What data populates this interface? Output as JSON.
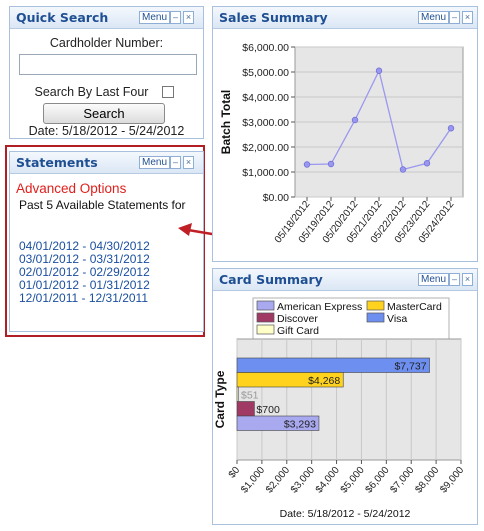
{
  "common": {
    "menu_label": "Menu",
    "minimize_glyph": "–",
    "close_glyph": "×"
  },
  "quick_search": {
    "title": "Quick Search",
    "cardholder_label": "Cardholder Number:",
    "cardholder_value": "",
    "last_four_label": "Search By Last Four",
    "last_four_checked": false,
    "search_button": "Search",
    "date_range": "Date: 5/18/2012 - 5/24/2012"
  },
  "statements": {
    "title": "Statements",
    "advanced_options": "Advanced Options",
    "subtitle": "Past 5 Available Statements for",
    "links": [
      "04/01/2012 - 04/30/2012",
      "03/01/2012 - 03/31/2012",
      "02/01/2012 - 02/29/2012",
      "01/01/2012 - 01/31/2012",
      "12/01/2011 - 12/31/2011"
    ],
    "highlight_color": "#b11f24"
  },
  "sales_summary": {
    "title": "Sales Summary"
  },
  "card_summary": {
    "title": "Card Summary",
    "footer": "Date: 5/18/2012 - 5/24/2012"
  },
  "chart_data": [
    {
      "type": "line",
      "ylabel": "Batch Total",
      "x": [
        "05/18/2012",
        "05/19/2012",
        "05/20/2012",
        "05/21/2012",
        "05/22/2012",
        "05/23/2012",
        "05/24/2012"
      ],
      "series": [
        {
          "values": [
            1300,
            1320,
            3080,
            5050,
            1100,
            1350,
            2750
          ],
          "color": "#9a98ee"
        }
      ],
      "ylim": [
        0,
        6000
      ],
      "yticks": [
        0,
        1000,
        2000,
        3000,
        4000,
        5000,
        6000
      ],
      "ytick_labels": [
        "$0.00",
        "$1,000.00",
        "$2,000.00",
        "$3,000.00",
        "$4,000.00",
        "$5,000.00",
        "$6,000.00"
      ],
      "grid": true
    },
    {
      "type": "bar",
      "orientation": "horizontal",
      "ylabel": "Card Type",
      "legend_position": "top",
      "categories": [
        "American Express",
        "MasterCard",
        "Discover",
        "Visa",
        "Gift Card"
      ],
      "colors": [
        "#a9a9f0",
        "#ffd21e",
        "#a03a65",
        "#6c8ff0",
        "#ffffc8"
      ],
      "values": [
        3293,
        4268,
        700,
        7737,
        51
      ],
      "data_labels": [
        "$3,293",
        "$4,268",
        "$700",
        "$7,737",
        "$51"
      ],
      "draw_order": [
        "Visa",
        "MasterCard",
        "Gift Card",
        "Discover",
        "American Express"
      ],
      "xlim": [
        0,
        9000
      ],
      "xticks": [
        0,
        1000,
        2000,
        3000,
        4000,
        5000,
        6000,
        7000,
        8000,
        9000
      ],
      "xtick_labels": [
        "$0",
        "$1,000",
        "$2,000",
        "$3,000",
        "$4,000",
        "$5,000",
        "$6,000",
        "$7,000",
        "$8,000",
        "$9,000"
      ],
      "grid": true
    }
  ]
}
